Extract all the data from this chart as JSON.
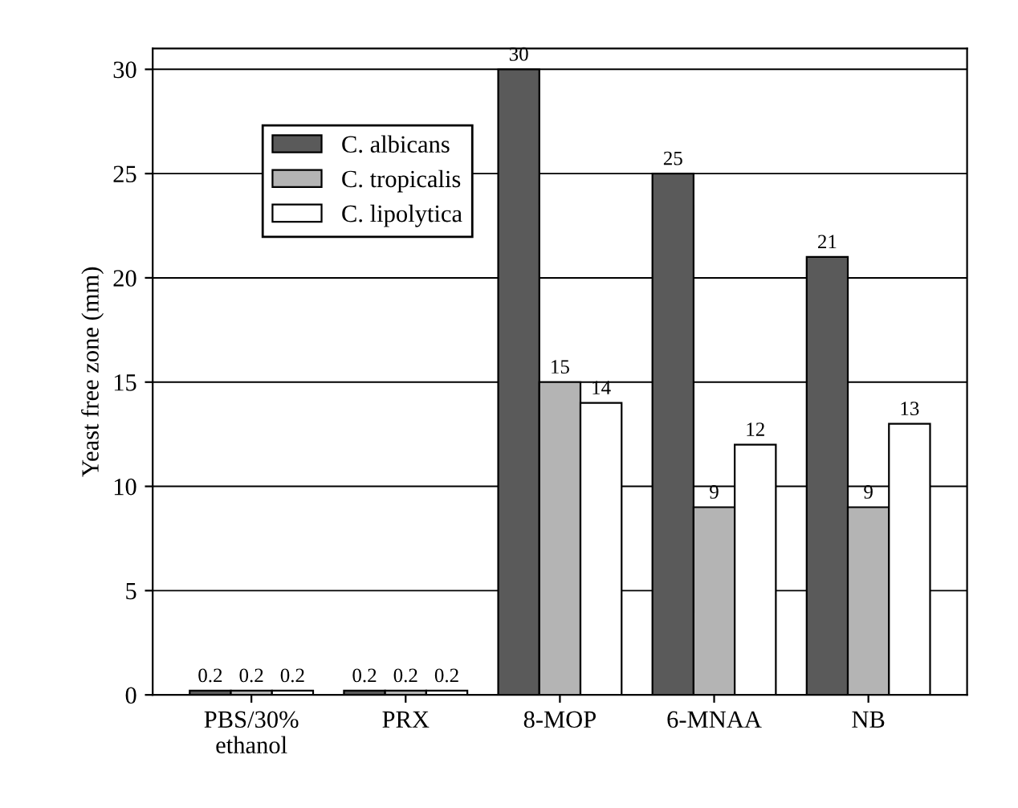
{
  "chart_data": {
    "type": "bar",
    "ylabel": "Yeast free zone (mm)",
    "categories": [
      "PBS/30%\nethanol",
      "PRX",
      "8-MOP",
      "6-MNAA",
      "NB"
    ],
    "series": [
      {
        "name": "C. albicans",
        "color": "#5a5a5a",
        "values": [
          0.2,
          0.2,
          30,
          25,
          21
        ]
      },
      {
        "name": "C. tropicalis",
        "color": "#b4b4b4",
        "values": [
          0.2,
          0.2,
          15,
          9,
          9
        ]
      },
      {
        "name": "C. lipolytica",
        "color": "#ffffff",
        "values": [
          0.2,
          0.2,
          14,
          12,
          13
        ]
      }
    ],
    "ylim": [
      0,
      31
    ],
    "yticks": [
      0,
      5,
      10,
      15,
      20,
      25,
      30
    ],
    "grid": "y",
    "legend": "top left",
    "data_labels": true
  }
}
